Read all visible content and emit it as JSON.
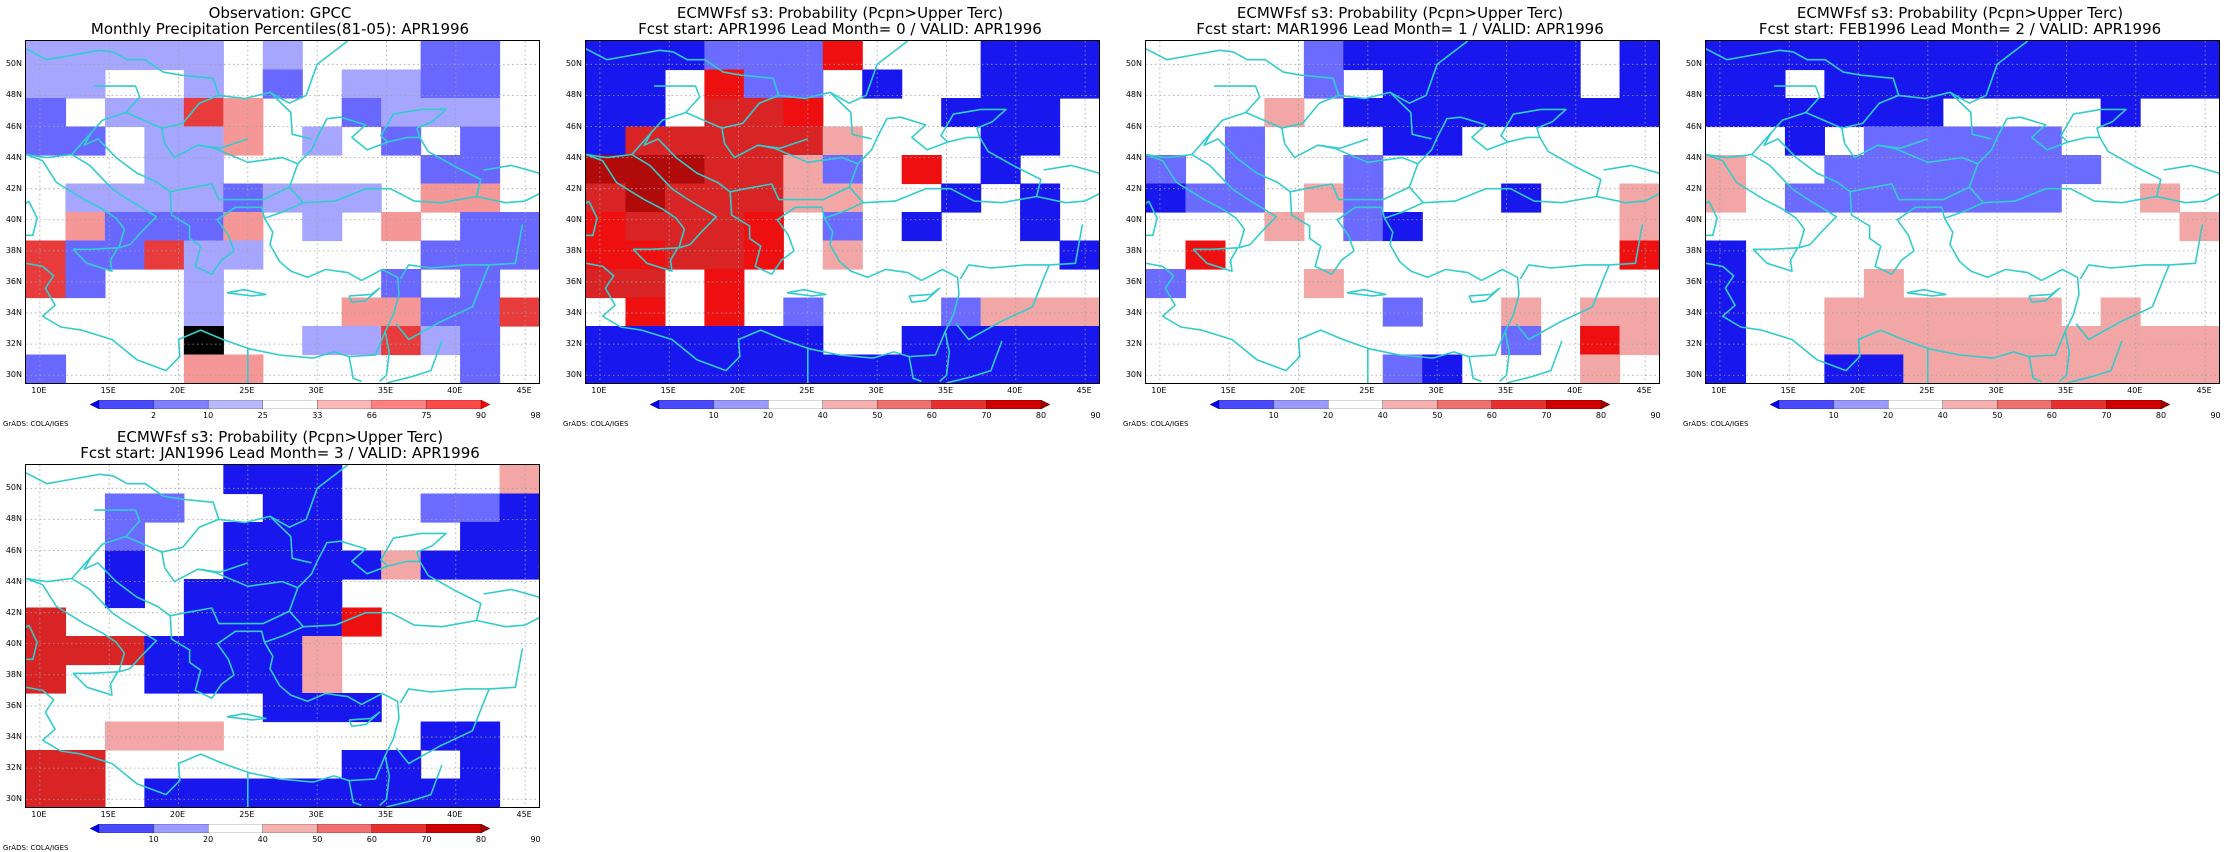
{
  "panels": [
    {
      "title1": "Observation: GPCC",
      "title2": "Monthly Precipitation Percentiles(81-05): APR1996",
      "grid": [
        "1111101000220",
        "1100102011220",
        "2011430021110",
        "2201130102020",
        "0001100000220",
        "0111121110330",
        "0322230103022",
        "4224110000222",
        "4200100002020",
        "0000100033224",
        "0000500114120",
        "2000330000020"
      ],
      "scale": "obs",
      "legend": [
        "2",
        "10",
        "25",
        "33",
        "66",
        "75",
        "90",
        "98"
      ],
      "credit": "GrADS: COLA/IGES"
    },
    {
      "title1": "ECMWFsf s3: Probability (Pcpn>Upper Terc)",
      "title2": "Fcst start: APR1996   Lead Month= 0 / VALID: APR1996",
      "grid": [
        "3331114000333",
        "3304110300333",
        "3305540003330",
        "3555552000330",
        "6665521040300",
        "5655522003030",
        "4555401030030",
        "4455402000003",
        "5504000000000",
        "0404010001222",
        "3333330033333",
        "3333333333333"
      ],
      "scale": "prob",
      "legend": [
        "10",
        "20",
        "40",
        "50",
        "60",
        "70",
        "80",
        "90"
      ],
      "credit": "GrADS: COLA/IGES"
    },
    {
      "title1": "ECMWFsf s3: Probability (Pcpn>Upper Terc)",
      "title2": "Fcst start: MAR1996   Lead Month= 1 / VALID: APR1996",
      "grid": [
        "0000133333303",
        "0000103333303",
        "0002033333333",
        "0010003300000",
        "1010010000000",
        "3110210003002",
        "0002013000002",
        "0400000000004",
        "1000200000000",
        "0000001002022",
        "0000000001042",
        "0000001300020"
      ],
      "scale": "prob",
      "legend": [
        "10",
        "20",
        "40",
        "50",
        "60",
        "70",
        "80",
        "90"
      ],
      "credit": "GrADS: COLA/IGES"
    },
    {
      "title1": "ECMWFsf s3: Probability (Pcpn>Upper Terc)",
      "title2": "Fcst start: FEB1996   Lead Month= 2 / VALID: APR1996",
      "grid": [
        "3333333333333",
        "3303333333333",
        "3333330000300",
        "0030111110000",
        "2001111111000",
        "2011111110020",
        "0000000000002",
        "3000000000000",
        "3000200000000",
        "3002222220200",
        "3002222222222",
        "3003322222222"
      ],
      "scale": "prob",
      "legend": [
        "10",
        "20",
        "40",
        "50",
        "60",
        "70",
        "80",
        "90"
      ],
      "credit": "GrADS: COLA/IGES"
    },
    {
      "title1": "ECMWFsf s3: Probability (Pcpn>Upper Terc)",
      "title2": "Fcst start: JAN1996   Lead Month= 3 / VALID: APR1996",
      "grid": [
        "0000033300002",
        "0011003300113",
        "0010033300033",
        "0030033332333",
        "0030333300000",
        "5000333340000",
        "5553333200000",
        "5003333200000",
        "0000003330000",
        "0022200000330",
        "5500000033030",
        "5503333333330"
      ],
      "scale": "prob",
      "legend": [
        "10",
        "20",
        "40",
        "50",
        "60",
        "70",
        "80",
        "90"
      ],
      "credit": "GrADS: COLA/IGES"
    }
  ],
  "yticks": [
    "50N",
    "48N",
    "46N",
    "44N",
    "42N",
    "40N",
    "38N",
    "36N",
    "34N",
    "32N",
    "30N"
  ],
  "xticks": [
    "10E",
    "15E",
    "20E",
    "25E",
    "30E",
    "35E",
    "40E",
    "45E"
  ],
  "colors": {
    "obs": [
      "#ffffff",
      "#a6a6ff",
      "#6868ff",
      "#f59797",
      "#e83b3b"
    ],
    "prob": [
      "#ffffff",
      "#6b6bff",
      "#f2a6a6",
      "#1818ee",
      "#ee1010",
      "#d82424",
      "#b00a0a"
    ],
    "coast": "#33cccc",
    "gridline": "#a0a0a0"
  }
}
